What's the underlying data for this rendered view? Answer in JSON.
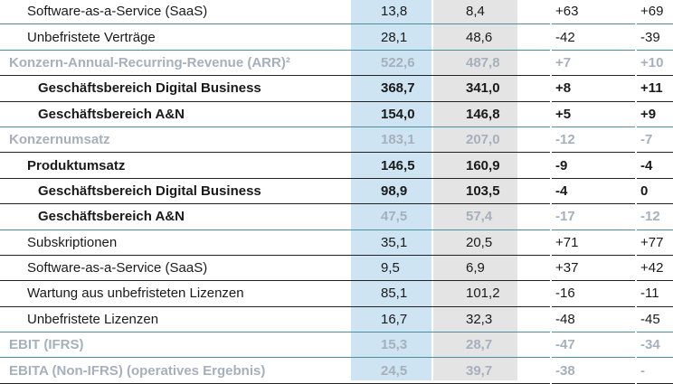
{
  "rows": [
    {
      "label": "Software-as-a-Service (SaaS)",
      "v1": "13,8",
      "v2": "8,4",
      "v3": "+63",
      "v4": "+69",
      "style": "normal",
      "indent": 1
    },
    {
      "label": "Unbefristete Verträge",
      "v1": "28,1",
      "v2": "48,6",
      "v3": "-42",
      "v4": "-39",
      "style": "normal",
      "indent": 1
    },
    {
      "label": "Konzern-Annual-Recurring-Revenue (ARR)²",
      "v1": "522,6",
      "v2": "487,8",
      "v3": "+7",
      "v4": "+10",
      "style": "grey",
      "indent": 0
    },
    {
      "label": "Geschäftsbereich Digital Business",
      "v1": "368,7",
      "v2": "341,0",
      "v3": "+8",
      "v4": "+11",
      "style": "bold",
      "indent": 2
    },
    {
      "label": "Geschäftsbereich A&N",
      "v1": "154,0",
      "v2": "146,8",
      "v3": "+5",
      "v4": "+9",
      "style": "bold",
      "indent": 2
    },
    {
      "label": "Konzernumsatz",
      "v1": "183,1",
      "v2": "207,0",
      "v3": "-12",
      "v4": "-7",
      "style": "grey",
      "indent": 0
    },
    {
      "label": "Produktumsatz",
      "v1": "146,5",
      "v2": "160,9",
      "v3": "-9",
      "v4": "-4",
      "style": "bold",
      "indent": 1
    },
    {
      "label": "Geschäftsbereich Digital Business",
      "v1": "98,9",
      "v2": "103,5",
      "v3": "-4",
      "v4": "0",
      "style": "bold",
      "indent": 2
    },
    {
      "label": "Geschäftsbereich A&N",
      "v1": "47,5",
      "v2": "57,4",
      "v3": "-17",
      "v4": "-12",
      "style": "bold greynum",
      "indent": 2
    },
    {
      "label": "Subskriptionen",
      "v1": "35,1",
      "v2": "20,5",
      "v3": "+71",
      "v4": "+77",
      "style": "normal",
      "indent": 1
    },
    {
      "label": "Software-as-a-Service (SaaS)",
      "v1": "9,5",
      "v2": "6,9",
      "v3": "+37",
      "v4": "+42",
      "style": "normal",
      "indent": 1
    },
    {
      "label": "Wartung aus unbefristeten Lizenzen",
      "v1": "85,1",
      "v2": "101,2",
      "v3": "-16",
      "v4": "-11",
      "style": "normal",
      "indent": 1
    },
    {
      "label": "Unbefristete Lizenzen",
      "v1": "16,7",
      "v2": "32,3",
      "v3": "-48",
      "v4": "-45",
      "style": "normal",
      "indent": 1
    },
    {
      "label": "EBIT (IFRS)",
      "v1": "15,3",
      "v2": "28,7",
      "v3": "-47",
      "v4": "-34",
      "style": "grey",
      "indent": 0
    },
    {
      "label": "EBITA (Non-IFRS) (operatives Ergebnis)",
      "v1": "24,5",
      "v2": "39,7",
      "v3": "-38",
      "v4": "-",
      "style": "grey",
      "indent": 0
    }
  ],
  "colors": {
    "current_column": "#cfe4f3",
    "prior_column": "#e4e4e4",
    "muted_text": "#a6b0bc",
    "divider_teal": "#4a8f9c"
  }
}
